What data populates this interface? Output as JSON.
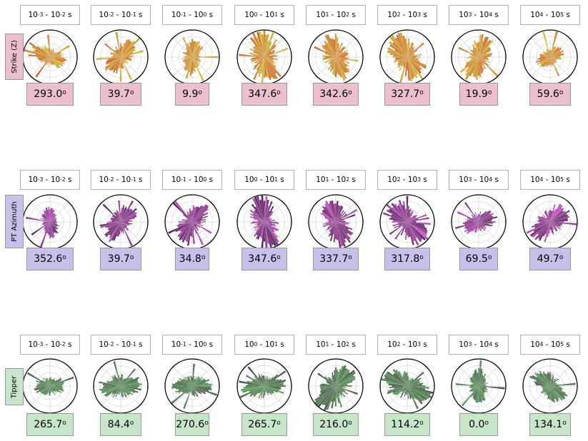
{
  "chart_data": {
    "type": "polar-rose-grid",
    "period_bands": [
      {
        "a": "-3",
        "b": "-2"
      },
      {
        "a": "-2",
        "b": "-1"
      },
      {
        "a": "-1",
        "b": "0"
      },
      {
        "a": "0",
        "b": "1"
      },
      {
        "a": "1",
        "b": "2"
      },
      {
        "a": "2",
        "b": "3"
      },
      {
        "a": "3",
        "b": "4"
      },
      {
        "a": "4",
        "b": "5"
      }
    ],
    "period_unit": "s",
    "period_base": "10",
    "degree_symbol": "o",
    "rows": [
      {
        "label": "Strike (Z)",
        "label_bg": "#ebc0cc",
        "colors": [
          "#c94a08",
          "#c9b82a"
        ],
        "angles": [
          "293.0",
          "39.7",
          "9.9",
          "347.6",
          "342.6",
          "327.7",
          "19.9",
          "59.6"
        ],
        "density": [
          0.55,
          0.7,
          0.6,
          1.0,
          0.85,
          1.0,
          0.8,
          0.45
        ]
      },
      {
        "label": "PT Azimuth",
        "label_bg": "#c9bfeb",
        "colors": [
          "#3d0a3d",
          "#c23cc2"
        ],
        "angles": [
          "352.6",
          "39.7",
          "34.8",
          "347.6",
          "337.7",
          "317.8",
          "69.5",
          "49.7"
        ],
        "density": [
          0.5,
          0.7,
          0.75,
          1.0,
          0.95,
          1.0,
          0.6,
          0.8
        ]
      },
      {
        "label": "Tipper",
        "label_bg": "#c7e5c8",
        "colors": [
          "#3a3a3a",
          "#3f9b3f"
        ],
        "angles": [
          "265.7",
          "84.4",
          "270.6",
          "265.7",
          "216.0",
          "114.2",
          "0.0",
          "134.1"
        ],
        "density": [
          0.5,
          0.75,
          0.65,
          0.8,
          1.0,
          1.0,
          0.55,
          0.7
        ]
      }
    ]
  }
}
